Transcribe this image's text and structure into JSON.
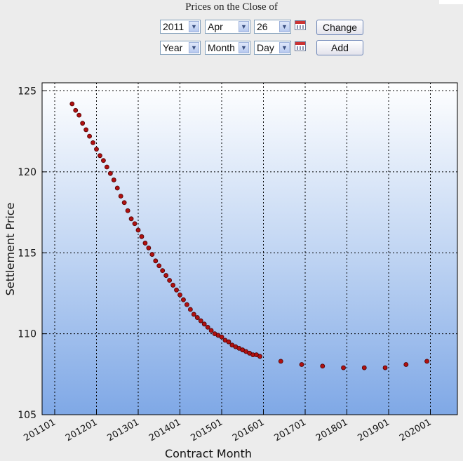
{
  "controls": {
    "title": "Prices on the Close of",
    "row1": {
      "year": "2011",
      "month": "Apr",
      "day": "26",
      "button": "Change"
    },
    "row2": {
      "year": "Year",
      "month": "Month",
      "day": "Day",
      "button": "Add"
    }
  },
  "chart_data": {
    "type": "scatter",
    "title": "",
    "xlabel": "Contract Month",
    "ylabel": "Settlement Price",
    "ylim": [
      105,
      125.5
    ],
    "yticks": [
      105,
      110,
      115,
      120,
      125
    ],
    "xticks": [
      "201101",
      "201201",
      "201301",
      "201401",
      "201501",
      "201601",
      "201701",
      "201801",
      "201901",
      "202001"
    ],
    "grid": true,
    "marker_color": "#b01010",
    "series": [
      {
        "x": [
          "201106",
          "201107",
          "201108",
          "201109",
          "201110",
          "201111",
          "201112",
          "201201",
          "201202",
          "201203",
          "201204",
          "201205",
          "201206",
          "201207",
          "201208",
          "201209",
          "201210",
          "201211",
          "201212",
          "201301",
          "201302",
          "201303",
          "201304",
          "201305",
          "201306",
          "201307",
          "201308",
          "201309",
          "201310",
          "201311",
          "201312",
          "201401",
          "201402",
          "201403",
          "201404",
          "201405",
          "201406",
          "201407",
          "201408",
          "201409",
          "201410",
          "201411",
          "201412",
          "201501",
          "201502",
          "201503",
          "201504",
          "201505",
          "201506",
          "201507",
          "201508",
          "201509",
          "201510",
          "201511",
          "201512",
          "201606",
          "201612",
          "201706",
          "201712",
          "201806",
          "201812",
          "201906",
          "201912"
        ],
        "y": [
          124.2,
          123.8,
          123.5,
          123.0,
          122.6,
          122.2,
          121.8,
          121.4,
          121.0,
          120.7,
          120.3,
          119.9,
          119.5,
          119.0,
          118.5,
          118.1,
          117.6,
          117.1,
          116.8,
          116.4,
          116.0,
          115.6,
          115.3,
          114.9,
          114.5,
          114.2,
          113.9,
          113.6,
          113.3,
          113.0,
          112.7,
          112.4,
          112.1,
          111.8,
          111.5,
          111.2,
          111.0,
          110.8,
          110.6,
          110.4,
          110.2,
          110.0,
          109.9,
          109.8,
          109.6,
          109.5,
          109.3,
          109.2,
          109.1,
          109.0,
          108.9,
          108.8,
          108.7,
          108.7,
          108.6,
          108.3,
          108.1,
          108.0,
          107.9,
          107.9,
          107.9,
          108.1,
          108.3
        ]
      }
    ]
  }
}
